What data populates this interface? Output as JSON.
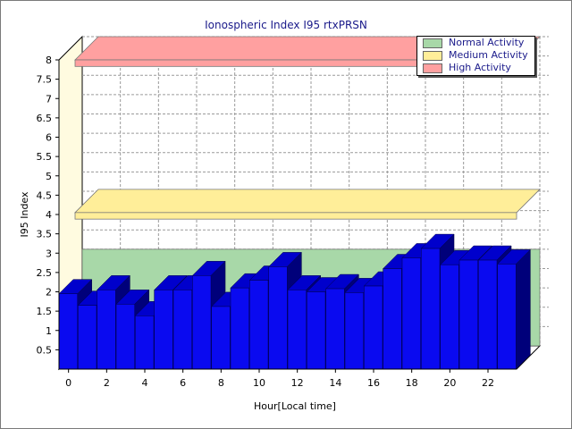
{
  "chart_data": {
    "type": "bar",
    "title": "Ionospheric Index I95 rtxPRSN",
    "xlabel": "Hour[Local time]",
    "ylabel": "I95 Index",
    "x": [
      0,
      1,
      2,
      3,
      4,
      5,
      6,
      7,
      8,
      9,
      10,
      11,
      12,
      13,
      14,
      15,
      16,
      17,
      18,
      19,
      20,
      21,
      22,
      23
    ],
    "x_tick_labels": [
      "0",
      "2",
      "4",
      "6",
      "8",
      "10",
      "12",
      "14",
      "16",
      "18",
      "20",
      "22"
    ],
    "y_tick_labels": [
      "0.5",
      "1",
      "1.5",
      "2",
      "2.5",
      "3",
      "3.5",
      "4",
      "4.5",
      "5",
      "5.5",
      "6",
      "6.5",
      "7",
      "7.5",
      "8"
    ],
    "ylim": [
      0,
      8
    ],
    "series": [
      {
        "name": "",
        "color": "#0a0af0",
        "values": [
          1.95,
          1.65,
          2.05,
          1.68,
          1.38,
          2.05,
          2.05,
          2.42,
          1.62,
          2.1,
          2.3,
          2.65,
          2.05,
          2.0,
          2.08,
          1.98,
          2.15,
          2.6,
          2.88,
          3.12,
          2.7,
          2.82,
          2.82,
          2.72
        ]
      }
    ],
    "bands": [
      {
        "name": "Normal Activity",
        "from": 0,
        "to": 2.5,
        "color": "#a8d8a8"
      },
      {
        "name": "Medium Activity",
        "from": 3.95,
        "to": 4.05,
        "color": "#ffee99"
      },
      {
        "name": "High Activity",
        "from": 7.9,
        "to": 8.0,
        "color": "#ffa0a0"
      }
    ],
    "grid": true,
    "legend_position": "top-right"
  }
}
